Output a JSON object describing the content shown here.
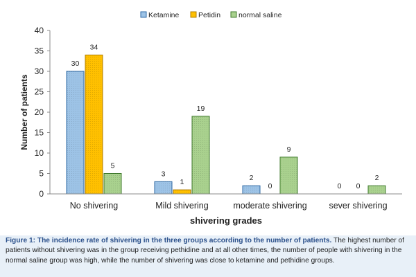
{
  "chart_data": {
    "type": "bar",
    "categories": [
      "No shivering",
      "Mild shivering",
      "moderate shivering",
      "sever shivering"
    ],
    "series": [
      {
        "name": "Ketamine",
        "values": [
          30,
          3,
          2,
          0
        ],
        "color": "#9dc3e6",
        "edge": "#2e6aa6"
      },
      {
        "name": "Petidin",
        "values": [
          34,
          1,
          0,
          0
        ],
        "color": "#ffc000",
        "edge": "#b07c00"
      },
      {
        "name": "normal saline",
        "values": [
          5,
          19,
          9,
          2
        ],
        "color": "#a9d18e",
        "edge": "#3f7a2c"
      }
    ],
    "title": "",
    "xlabel": "shivering grades",
    "ylabel": "Number of patients",
    "ylim": [
      0,
      40
    ],
    "yticks": [
      0,
      5,
      10,
      15,
      20,
      25,
      30,
      35,
      40
    ],
    "grid": false,
    "legend": "top",
    "data_labels": true
  },
  "caption": {
    "lead": "Figure 1: The incidence rate of shivering in the three groups according to the number of patients.",
    "body": " The highest number of patients without shivering was in the group receiving pethidine and at all other times, the number of people with shivering in the normal saline group was high, while the number of shivering was close to ketamine and pethidine groups."
  }
}
